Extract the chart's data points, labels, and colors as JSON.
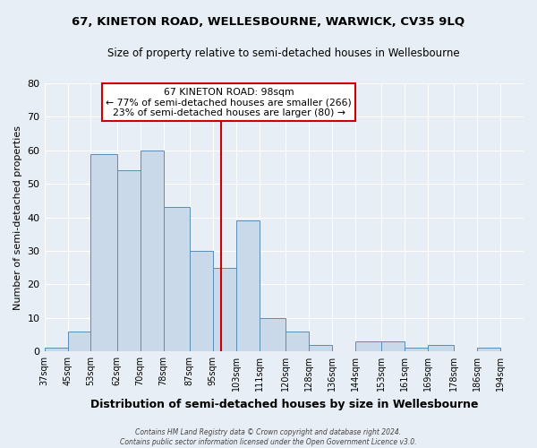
{
  "title": "67, KINETON ROAD, WELLESBOURNE, WARWICK, CV35 9LQ",
  "subtitle": "Size of property relative to semi-detached houses in Wellesbourne",
  "xlabel": "Distribution of semi-detached houses by size in Wellesbourne",
  "ylabel": "Number of semi-detached properties",
  "bin_edges": [
    37,
    45,
    53,
    62,
    70,
    78,
    87,
    95,
    103,
    111,
    120,
    128,
    136,
    144,
    153,
    161,
    169,
    178,
    186,
    194,
    202
  ],
  "bin_counts": [
    1,
    6,
    59,
    54,
    60,
    43,
    30,
    25,
    39,
    10,
    6,
    2,
    0,
    3,
    3,
    1,
    2,
    0,
    1,
    0
  ],
  "bar_facecolor": "#c9d9ea",
  "bar_edgecolor": "#5a8db5",
  "reference_line_x": 98,
  "reference_line_color": "#cc0000",
  "annotation_title": "67 KINETON ROAD: 98sqm",
  "annotation_line1": "← 77% of semi-detached houses are smaller (266)",
  "annotation_line2": "23% of semi-detached houses are larger (80) →",
  "annotation_box_edgecolor": "#cc0000",
  "annotation_box_facecolor": "#ffffff",
  "ylim": [
    0,
    80
  ],
  "yticks": [
    0,
    10,
    20,
    30,
    40,
    50,
    60,
    70,
    80
  ],
  "background_color": "#e8eef5",
  "grid_color": "#ffffff",
  "footer_line1": "Contains HM Land Registry data © Crown copyright and database right 2024.",
  "footer_line2": "Contains public sector information licensed under the Open Government Licence v3.0."
}
